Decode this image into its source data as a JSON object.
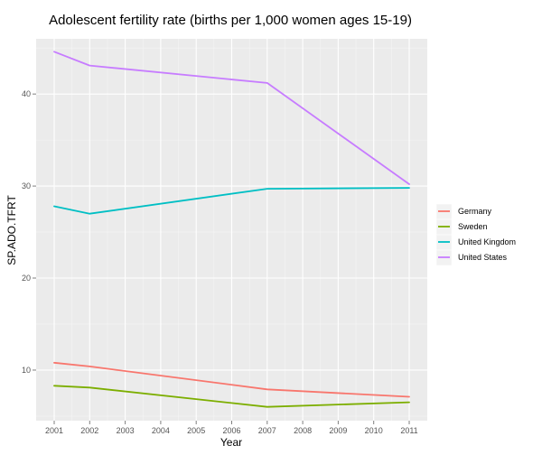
{
  "chart_data": {
    "type": "line",
    "title": "Adolescent fertility rate (births per 1,000 women ages 15-19)",
    "xlabel": "Year",
    "ylabel": "SP.ADO.TFRT",
    "xlim": [
      2001,
      2011
    ],
    "ylim": [
      4.5,
      46
    ],
    "x_ticks": [
      "2001",
      "2002",
      "2003",
      "2004",
      "2005",
      "2006",
      "2007",
      "2008",
      "2009",
      "2010",
      "2011"
    ],
    "y_ticks": [
      "10",
      "20",
      "30",
      "40"
    ],
    "grid": true,
    "legend_position": "right",
    "series": [
      {
        "name": "Germany",
        "color": "#F8766D",
        "points": [
          [
            2001,
            10.8
          ],
          [
            2002,
            10.4
          ],
          [
            2007,
            7.9
          ],
          [
            2011,
            7.1
          ]
        ]
      },
      {
        "name": "Sweden",
        "color": "#7CAE00",
        "points": [
          [
            2001,
            8.3
          ],
          [
            2002,
            8.1
          ],
          [
            2007,
            6.0
          ],
          [
            2011,
            6.5
          ]
        ]
      },
      {
        "name": "United Kingdom",
        "color": "#00BFC4",
        "points": [
          [
            2001,
            27.8
          ],
          [
            2002,
            27.0
          ],
          [
            2007,
            29.7
          ],
          [
            2011,
            29.8
          ]
        ]
      },
      {
        "name": "United States",
        "color": "#C77CFF",
        "points": [
          [
            2001,
            44.6
          ],
          [
            2002,
            43.1
          ],
          [
            2007,
            41.2
          ],
          [
            2011,
            30.2
          ]
        ]
      }
    ]
  }
}
